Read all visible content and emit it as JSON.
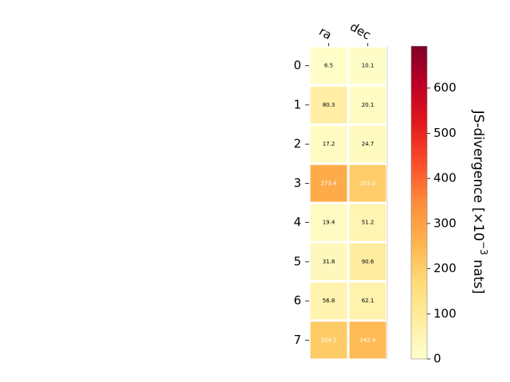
{
  "chart_data": {
    "type": "heatmap",
    "columns": [
      "ra",
      "dec"
    ],
    "rows": [
      "0",
      "1",
      "2",
      "3",
      "4",
      "5",
      "6",
      "7"
    ],
    "values": [
      [
        6.5,
        10.1
      ],
      [
        80.3,
        20.1
      ],
      [
        17.2,
        24.7
      ],
      [
        273.4,
        201.0
      ],
      [
        19.4,
        51.2
      ],
      [
        31.8,
        90.6
      ],
      [
        56.8,
        62.1
      ],
      [
        204.1,
        242.4
      ]
    ],
    "cell_labels": [
      [
        "6.5",
        "10.1"
      ],
      [
        "80.3",
        "20.1"
      ],
      [
        "17.2",
        "24.7"
      ],
      [
        "273.4",
        "201.0"
      ],
      [
        "19.4",
        "51.2"
      ],
      [
        "31.8",
        "90.6"
      ],
      [
        "56.8",
        "62.1"
      ],
      [
        "204.1",
        "242.4"
      ]
    ],
    "colorbar": {
      "label_prefix": "JS-divergence [×10",
      "label_exponent": "−3",
      "label_suffix": " nats]",
      "range": [
        0,
        693
      ],
      "ticks": [
        0,
        100,
        200,
        300,
        400,
        500,
        600
      ],
      "tick_labels": [
        "0",
        "100",
        "200",
        "300",
        "400",
        "500",
        "600"
      ],
      "colormap": "YlOrRd"
    }
  }
}
